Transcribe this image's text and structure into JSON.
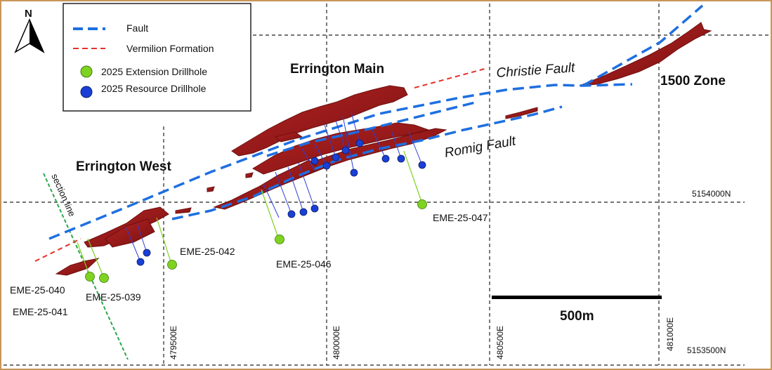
{
  "map": {
    "border_color": "#c8965a",
    "north_arrow": {
      "letter": "N",
      "icon": "north-arrow-icon"
    },
    "legend": {
      "items": [
        {
          "label": "Fault",
          "symbol": "dashed-line",
          "color": "#1e6fe0"
        },
        {
          "label": "Vermilion Formation",
          "symbol": "dashed-line",
          "color": "#e5312a"
        },
        {
          "label": "2025 Extension Drillhole",
          "symbol": "circle",
          "color": "#7ed321"
        },
        {
          "label": "2025 Resource Drillhole",
          "symbol": "circle",
          "color": "#1a3fd6"
        }
      ]
    },
    "area_labels": {
      "errington_main": "Errington Main",
      "errington_west": "Errington West",
      "zone_1500": "1500 Zone"
    },
    "fault_labels": {
      "christie": "Christie Fault",
      "romig": "Romig Fault"
    },
    "section_line_label": "section line",
    "grid": {
      "eastings": [
        "479500E",
        "480000E",
        "480500E",
        "481000E"
      ],
      "northings": [
        "5154000N",
        "5153500N"
      ]
    },
    "drillholes": {
      "extension": [
        "EME-25-039",
        "EME-25-040",
        "EME-25-041",
        "EME-25-042",
        "EME-25-046",
        "EME-25-047"
      ]
    },
    "scale_bar": {
      "label": "500m"
    },
    "colors": {
      "orebody": "#9b1b1b",
      "orebody_edge": "#6e0f0f",
      "fault": "#1e6fe0",
      "vermilion": "#e5312a",
      "extension_hole": "#7ed321",
      "resource_hole": "#1a3fd6",
      "section_line": "#2aa84a",
      "grid": "#222222"
    }
  }
}
